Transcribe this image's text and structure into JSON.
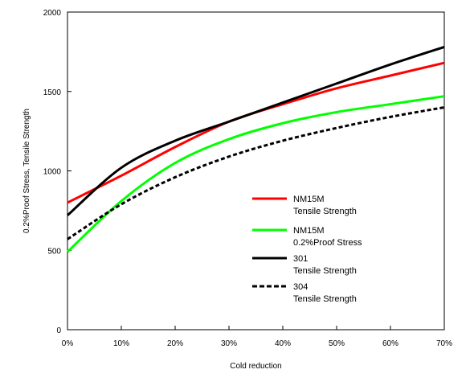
{
  "chart_data": {
    "type": "line",
    "title": "",
    "xlabel": "Cold reduction",
    "ylabel": "0.2%Proof Stress, Tensile Strength",
    "x": [
      0,
      10,
      20,
      30,
      40,
      50,
      60,
      70
    ],
    "xticklabels": [
      "0%",
      "10%",
      "20%",
      "30%",
      "40%",
      "50%",
      "60%",
      "70%"
    ],
    "xlim": [
      0,
      70
    ],
    "ylim": [
      0,
      2000
    ],
    "yticks": [
      0,
      500,
      1000,
      1500,
      2000
    ],
    "grid": false,
    "legend_position": "lower-right",
    "series": [
      {
        "name": "NM15M",
        "sub": "Tensile Strength",
        "color": "#ff0000",
        "dash": "solid",
        "values": [
          800,
          970,
          1150,
          1310,
          1420,
          1520,
          1600,
          1680
        ]
      },
      {
        "name": "NM15M",
        "sub": "0.2%Proof Stress",
        "color": "#00ff00",
        "dash": "solid",
        "values": [
          490,
          810,
          1050,
          1200,
          1300,
          1370,
          1420,
          1470
        ]
      },
      {
        "name": "301",
        "sub": "Tensile Strength",
        "color": "#000000",
        "dash": "solid",
        "values": [
          720,
          1020,
          1190,
          1310,
          1430,
          1550,
          1670,
          1780
        ]
      },
      {
        "name": "304",
        "sub": "Tensile Strength",
        "color": "#000000",
        "dash": "dashed",
        "values": [
          570,
          790,
          960,
          1090,
          1190,
          1270,
          1340,
          1400
        ]
      }
    ]
  }
}
